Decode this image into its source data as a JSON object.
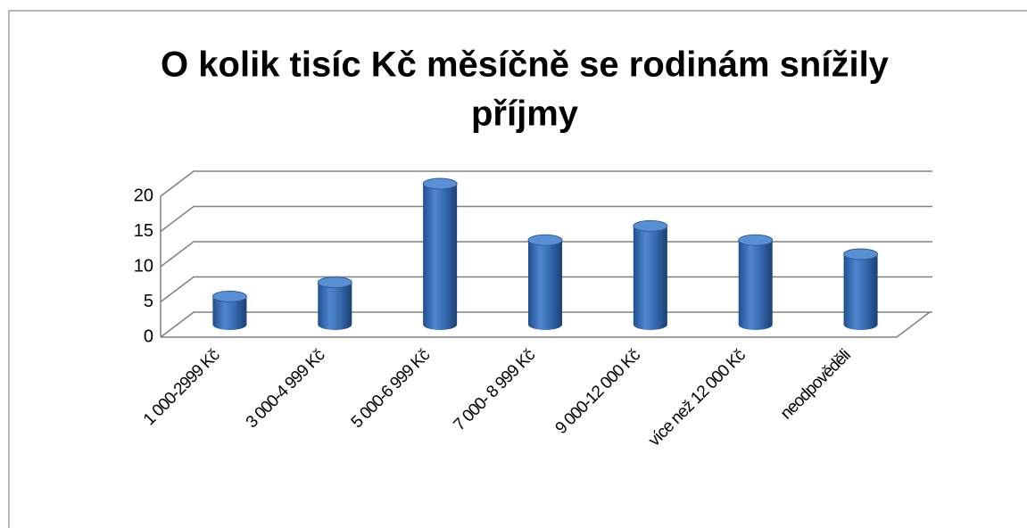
{
  "chart_data": {
    "type": "bar",
    "title": [
      "O kolik tisíc Kč měsíčně se rodinám snížily",
      "příjmy"
    ],
    "categories": [
      "1 000-2999 Kč",
      "3 000-4 999 Kč",
      "5 000-6 999 Kč",
      "7 000- 8 999 Kč",
      "9 000-12 000 Kč",
      "více než 12 000 Kč",
      "neodpověděli"
    ],
    "values": [
      4,
      6,
      20,
      12,
      14,
      12,
      10
    ],
    "color": "#3a6fb5",
    "ylim": [
      0,
      20
    ],
    "yticks": [
      0,
      5,
      10,
      15,
      20
    ],
    "grid": true
  }
}
